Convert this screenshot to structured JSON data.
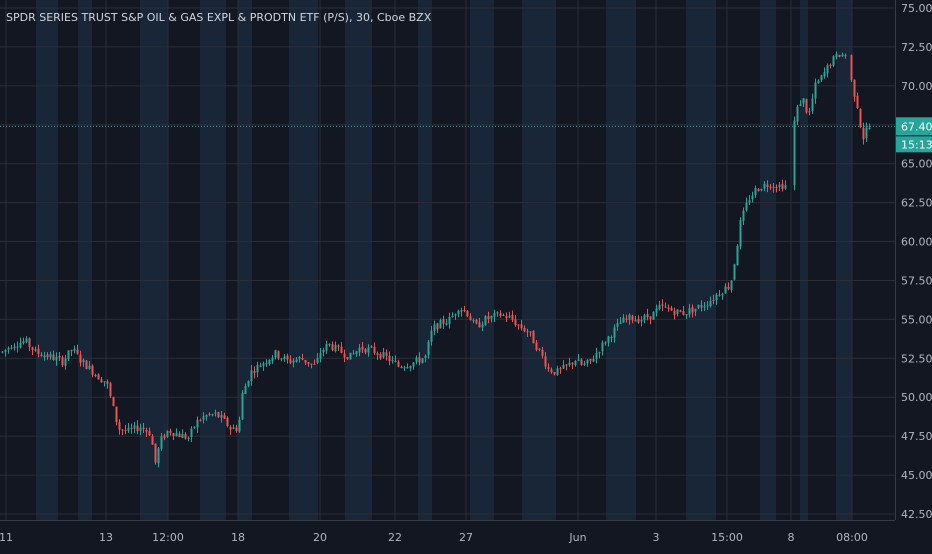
{
  "chart_data": {
    "type": "candlestick",
    "title": "SPDR SERIES TRUST S&P OIL & GAS EXPL & PRODTN ETF (P/S), 30, Cboe BZX",
    "y_ticks": [
      "75.00",
      "72.50",
      "70.00",
      "67.50",
      "65.00",
      "62.50",
      "60.00",
      "57.50",
      "55.00",
      "52.50",
      "50.00",
      "47.50",
      "45.00",
      "42.50"
    ],
    "ylim": [
      42.5,
      75.0
    ],
    "x_ticks": [
      "11",
      "13",
      "12:00",
      "18",
      "20",
      "22",
      "27",
      "Jun",
      "3",
      "15:00",
      "8",
      "08:00"
    ],
    "last_price": "67.40",
    "countdown": "15:13",
    "colors": {
      "up": "#26a69a",
      "down": "#ef5350",
      "background": "#131722",
      "session": "#1c2a3e",
      "grid": "#2a2e39",
      "axis_text": "#b2b5be",
      "last_line": "#26a69a"
    },
    "price_path": [
      [
        0,
        52.8
      ],
      [
        12,
        53.4
      ],
      [
        25,
        53.6
      ],
      [
        35,
        52.9
      ],
      [
        50,
        52.6
      ],
      [
        62,
        52.3
      ],
      [
        72,
        53.1
      ],
      [
        80,
        52.4
      ],
      [
        90,
        51.8
      ],
      [
        100,
        51.2
      ],
      [
        106,
        51.0
      ],
      [
        112,
        49.5
      ],
      [
        118,
        48.0
      ],
      [
        128,
        47.8
      ],
      [
        140,
        48.1
      ],
      [
        150,
        47.7
      ],
      [
        155,
        45.8
      ],
      [
        160,
        47.2
      ],
      [
        168,
        47.9
      ],
      [
        178,
        47.6
      ],
      [
        188,
        47.4
      ],
      [
        196,
        48.4
      ],
      [
        205,
        48.8
      ],
      [
        215,
        48.9
      ],
      [
        222,
        48.6
      ],
      [
        230,
        48.0
      ],
      [
        238,
        48.0
      ],
      [
        242,
        50.2
      ],
      [
        250,
        51.6
      ],
      [
        262,
        52.2
      ],
      [
        275,
        52.8
      ],
      [
        288,
        52.3
      ],
      [
        300,
        52.5
      ],
      [
        315,
        52.0
      ],
      [
        320,
        52.9
      ],
      [
        328,
        53.4
      ],
      [
        338,
        53.0
      ],
      [
        350,
        52.6
      ],
      [
        360,
        53.2
      ],
      [
        372,
        53.0
      ],
      [
        385,
        52.6
      ],
      [
        398,
        52.0
      ],
      [
        412,
        52.2
      ],
      [
        425,
        52.6
      ],
      [
        432,
        54.4
      ],
      [
        442,
        54.8
      ],
      [
        450,
        55.0
      ],
      [
        458,
        55.8
      ],
      [
        466,
        55.5
      ],
      [
        475,
        54.5
      ],
      [
        485,
        55.0
      ],
      [
        500,
        55.3
      ],
      [
        510,
        55.1
      ],
      [
        518,
        54.6
      ],
      [
        528,
        54.2
      ],
      [
        535,
        53.4
      ],
      [
        542,
        52.6
      ],
      [
        548,
        51.8
      ],
      [
        556,
        51.6
      ],
      [
        565,
        51.9
      ],
      [
        575,
        52.4
      ],
      [
        582,
        52.0
      ],
      [
        590,
        52.3
      ],
      [
        600,
        53.2
      ],
      [
        610,
        54.0
      ],
      [
        620,
        54.8
      ],
      [
        630,
        55.1
      ],
      [
        640,
        55.0
      ],
      [
        652,
        55.3
      ],
      [
        660,
        55.8
      ],
      [
        670,
        55.6
      ],
      [
        682,
        55.4
      ],
      [
        695,
        55.7
      ],
      [
        705,
        56.0
      ],
      [
        715,
        56.5
      ],
      [
        722,
        56.9
      ],
      [
        730,
        57.2
      ],
      [
        735,
        59.0
      ],
      [
        740,
        61.2
      ],
      [
        748,
        62.7
      ],
      [
        755,
        63.3
      ],
      [
        762,
        63.6
      ],
      [
        770,
        63.7
      ],
      [
        778,
        63.6
      ],
      [
        786,
        63.6
      ],
      [
        795,
        68.2
      ],
      [
        802,
        69.3
      ],
      [
        808,
        68.0
      ],
      [
        815,
        70.0
      ],
      [
        822,
        70.6
      ],
      [
        830,
        71.5
      ],
      [
        838,
        72.0
      ],
      [
        845,
        72.0
      ],
      [
        852,
        70.0
      ],
      [
        858,
        68.5
      ],
      [
        862,
        66.5
      ],
      [
        866,
        67.2
      ],
      [
        872,
        67.4
      ]
    ]
  }
}
